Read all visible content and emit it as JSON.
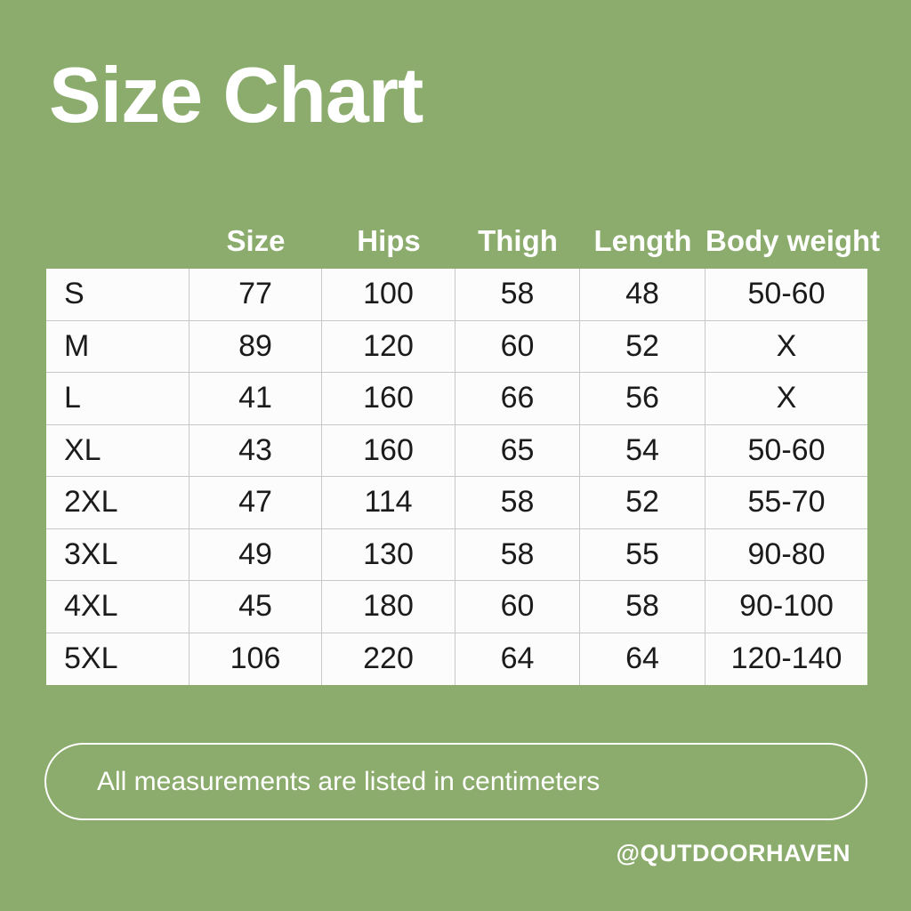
{
  "title": "Size Chart",
  "note": "All measurements are listed in centimeters",
  "handle": "@QUTDOORHAVEN",
  "colors": {
    "background": "#8BAC6C",
    "table_background": "#FCFCFC",
    "grid_line": "#C8C8C8",
    "text_dark": "#1B1B1B",
    "text_light": "#FFFFFF"
  },
  "chart_data": {
    "type": "table",
    "title": "Size Chart",
    "columns": [
      "Size",
      "Hips",
      "Thigh",
      "Length",
      "Body weight"
    ],
    "row_label_column_header": "",
    "rows": [
      [
        "S",
        "77",
        "100",
        "58",
        "48",
        "50-60"
      ],
      [
        "M",
        "89",
        "120",
        "60",
        "52",
        "X"
      ],
      [
        "L",
        "41",
        "160",
        "66",
        "56",
        "X"
      ],
      [
        "XL",
        "43",
        "160",
        "65",
        "54",
        "50-60"
      ],
      [
        "2XL",
        "47",
        "114",
        "58",
        "52",
        "55-70"
      ],
      [
        "3XL",
        "49",
        "130",
        "58",
        "55",
        "90-80"
      ],
      [
        "4XL",
        "45",
        "180",
        "60",
        "58",
        "90-100"
      ],
      [
        "5XL",
        "106",
        "220",
        "64",
        "64",
        "120-140"
      ]
    ],
    "note": "All measurements are listed in centimeters",
    "layout": "row labels S-5XL in first unlabeled column; 5 headed value columns; units centimeters"
  }
}
